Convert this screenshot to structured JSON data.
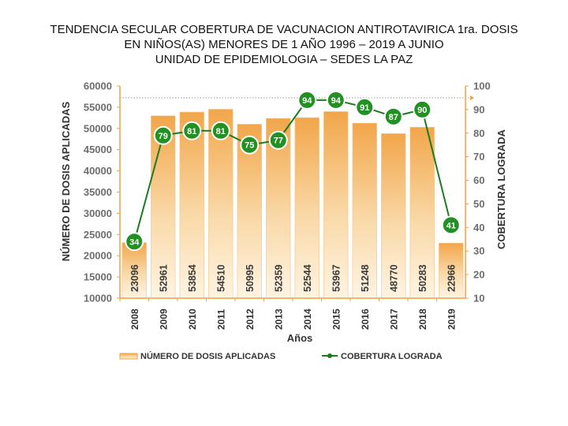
{
  "title_lines": [
    "TENDENCIA SECULAR COBERTURA DE VACUNACION ANTIROTAVIRICA 1ra. DOSIS",
    "EN NIÑOS(AS) MENORES DE 1 AÑO 1996  – 2019 A JUNIO",
    "UNIDAD DE EPIDEMIOLOGIA – SEDES LA PAZ"
  ],
  "chart_data": {
    "type": "bar",
    "xlabel": "Años",
    "ylabel": "NÚMERO DE DOSIS APLICADAS",
    "y2label": "COBERTURA LOGRADA",
    "categories": [
      "2008",
      "2009",
      "2010",
      "2011",
      "2012",
      "2013",
      "2014",
      "2015",
      "2016",
      "2017",
      "2018",
      "2019"
    ],
    "ylim": [
      10000,
      60000
    ],
    "yticks": [
      10000,
      15000,
      20000,
      25000,
      30000,
      35000,
      40000,
      45000,
      50000,
      55000,
      60000
    ],
    "y2lim": [
      10,
      100
    ],
    "y2ticks": [
      10,
      20,
      30,
      40,
      50,
      60,
      70,
      80,
      90,
      100
    ],
    "reference_line_y2": 95,
    "legend_position": "bottom",
    "series": [
      {
        "name": "NÚMERO DE DOSIS APLICADAS",
        "type": "bar",
        "axis": "left",
        "values": [
          23096,
          52961,
          53854,
          54510,
          50995,
          52359,
          52544,
          53967,
          51248,
          48770,
          50283,
          22966
        ]
      },
      {
        "name": "COBERTURA LOGRADA",
        "type": "line",
        "axis": "right",
        "values": [
          34,
          79,
          81,
          81,
          75,
          77,
          94,
          94,
          91,
          87,
          90,
          41
        ]
      }
    ],
    "colors": {
      "bar_top": "#f2a64a",
      "bar_bottom": "#fff4e2",
      "line": "#1e7a1e",
      "marker": "#239023",
      "axis": "#f0a040",
      "reference": "#999999",
      "tick_text": "#6e6e6e"
    }
  }
}
